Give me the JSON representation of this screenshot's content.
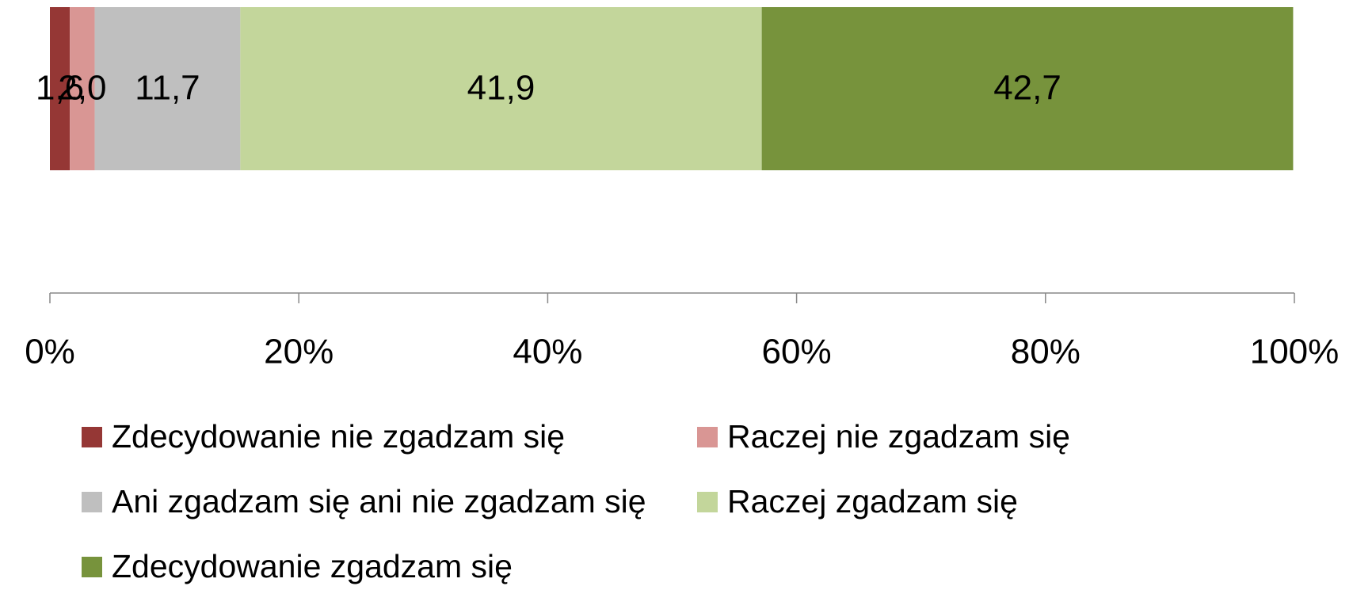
{
  "chart_data": {
    "type": "bar",
    "orientation": "horizontal",
    "stacked": true,
    "categories": [
      null
    ],
    "series": [
      {
        "name": "Zdecydowanie nie zgadzam się",
        "color": "#953735",
        "values": [
          1.6
        ],
        "value_labels": [
          "1,6"
        ]
      },
      {
        "name": "Raczej nie zgadzam się",
        "color": "#d99694",
        "values": [
          2.0
        ],
        "value_labels": [
          "2,0"
        ]
      },
      {
        "name": "Ani zgadzam się ani nie zgadzam się",
        "color": "#bfbfbf",
        "values": [
          11.7
        ],
        "value_labels": [
          "11,7"
        ]
      },
      {
        "name": "Raczej zgadzam się",
        "color": "#c3d69b",
        "values": [
          41.9
        ],
        "value_labels": [
          "41,9"
        ]
      },
      {
        "name": "Zdecydowanie zgadzam się",
        "color": "#77933c",
        "values": [
          42.7
        ],
        "value_labels": [
          "42,7"
        ]
      }
    ],
    "xlim": [
      0,
      100
    ],
    "xticks": [
      {
        "value": 0,
        "label": "0%"
      },
      {
        "value": 20,
        "label": "20%"
      },
      {
        "value": 40,
        "label": "40%"
      },
      {
        "value": 60,
        "label": "60%"
      },
      {
        "value": 80,
        "label": "80%"
      },
      {
        "value": 100,
        "label": "100%"
      }
    ],
    "grid": false,
    "legend": "bottom"
  }
}
